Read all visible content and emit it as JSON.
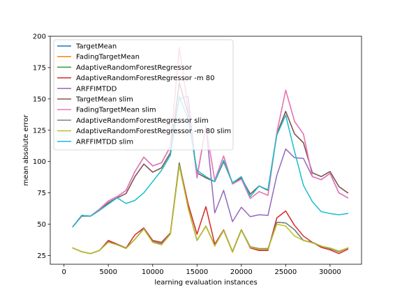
{
  "chart_data": {
    "type": "line",
    "xlabel": "learning evaluation instances",
    "ylabel": "mean absolute error",
    "xlim": [
      -1550,
      33550
    ],
    "ylim": [
      18,
      200
    ],
    "xticks": [
      0,
      5000,
      10000,
      15000,
      20000,
      25000,
      30000
    ],
    "yticks": [
      25,
      50,
      75,
      100,
      125,
      150,
      175,
      200
    ],
    "legend_position": "top-left",
    "grid": false,
    "x": [
      1000,
      2000,
      3000,
      4000,
      5000,
      6000,
      7000,
      8000,
      9000,
      10000,
      11000,
      12000,
      13000,
      14000,
      15000,
      16000,
      17000,
      18000,
      19000,
      20000,
      21000,
      22000,
      23000,
      24000,
      25000,
      26000,
      27000,
      28000,
      29000,
      30000,
      31000,
      32000
    ],
    "series": [
      {
        "name": "TargetMean",
        "color": "#1f77b4",
        "values": [
          48,
          56.5,
          56.5,
          61,
          67,
          71,
          74.5,
          88,
          98,
          91.5,
          95,
          107,
          163,
          138,
          91,
          87,
          84,
          100,
          83,
          87,
          74,
          80.5,
          77,
          122,
          140,
          122,
          115,
          91,
          88,
          92,
          80,
          75
        ]
      },
      {
        "name": "FadingTargetMean",
        "color": "#ff7f0e",
        "values": [
          48,
          57,
          56.5,
          62,
          68.5,
          72,
          77,
          92,
          103.5,
          96.5,
          99,
          112,
          191,
          142,
          88,
          128,
          85,
          104.5,
          82,
          86,
          70.5,
          76,
          73,
          123,
          157,
          132,
          122,
          88,
          85.5,
          90.5,
          75,
          71
        ]
      },
      {
        "name": "AdaptiveRandomForestRegressor",
        "color": "#2ca02c",
        "values": [
          31,
          28,
          26.5,
          29,
          36,
          33.5,
          31,
          38,
          46.5,
          36,
          34.5,
          42.5,
          99,
          63,
          37,
          48.5,
          33,
          45,
          28,
          45.5,
          32,
          30,
          30,
          51.5,
          51,
          45.5,
          37,
          35.5,
          32.5,
          30.5,
          28,
          31
        ]
      },
      {
        "name": "AdaptiveRandomForestRegressor -m 80",
        "color": "#d62728",
        "values": [
          31,
          28,
          26.5,
          29,
          37,
          34,
          31,
          41.5,
          47,
          37,
          35.5,
          43,
          98.5,
          66,
          42,
          64,
          34,
          45.5,
          28,
          45.5,
          31,
          29,
          29,
          55,
          60.5,
          49,
          40.5,
          35.5,
          31.5,
          29.5,
          26.5,
          30
        ]
      },
      {
        "name": "ARFFIMTDD",
        "color": "#9467bd",
        "values": [
          48,
          57,
          56.5,
          62,
          68.5,
          72,
          77,
          92,
          103.5,
          96.5,
          99,
          112,
          150,
          152,
          87,
          128,
          59,
          77,
          52,
          63.5,
          56,
          57.5,
          57,
          89,
          110,
          103,
          102.5,
          88,
          85.5,
          90.5,
          75,
          71
        ]
      },
      {
        "name": "TargetMean slim",
        "color": "#8c564b",
        "values": [
          48,
          56.5,
          56.5,
          61,
          67,
          71,
          74.5,
          88,
          98,
          91.5,
          95,
          107,
          163,
          138,
          91,
          87,
          84,
          100,
          83,
          87,
          74,
          80.5,
          77,
          122,
          140,
          122,
          115,
          91,
          88,
          92,
          80,
          75
        ]
      },
      {
        "name": "FadingTargetMean slim",
        "color": "#e377c2",
        "values": [
          48,
          57,
          56.5,
          62,
          68.5,
          72,
          77,
          92,
          103.5,
          96.5,
          99,
          112,
          191,
          142,
          88,
          128,
          85,
          104.5,
          82,
          86,
          70.5,
          76,
          73,
          123,
          157,
          132,
          122,
          88,
          85.5,
          90.5,
          75,
          71
        ]
      },
      {
        "name": "AdaptiveRandomForestRegressor slim",
        "color": "#7f7f7f",
        "values": [
          31,
          28,
          26.5,
          29,
          36,
          33.5,
          31,
          38,
          46.5,
          36,
          34.5,
          42.5,
          99,
          63,
          37,
          48.5,
          33,
          45,
          28,
          45.5,
          32,
          30.5,
          30.5,
          51.5,
          51,
          45.5,
          37,
          35.5,
          32.5,
          30.5,
          28,
          31
        ]
      },
      {
        "name": "AdaptiveRandomForestRegressor -m 80 slim",
        "color": "#bcbd22",
        "values": [
          31,
          28,
          26.5,
          29,
          35.5,
          33.5,
          30.5,
          38,
          46,
          35.5,
          33.5,
          42,
          96.5,
          63,
          37,
          48.5,
          32.5,
          45,
          27.5,
          45,
          31.5,
          30,
          30,
          50,
          48.5,
          40.5,
          37,
          35,
          32.5,
          31,
          28.5,
          31
        ]
      },
      {
        "name": "ARFFIMTDD slim",
        "color": "#17becf",
        "values": [
          48,
          57,
          56.5,
          61,
          66,
          71,
          66.5,
          69,
          75,
          84,
          93,
          105,
          152,
          134,
          93,
          88,
          84,
          101,
          83,
          88,
          72,
          80.5,
          77.5,
          121,
          137,
          108,
          81,
          68,
          60,
          58.5,
          57.5,
          58.5
        ]
      }
    ]
  }
}
